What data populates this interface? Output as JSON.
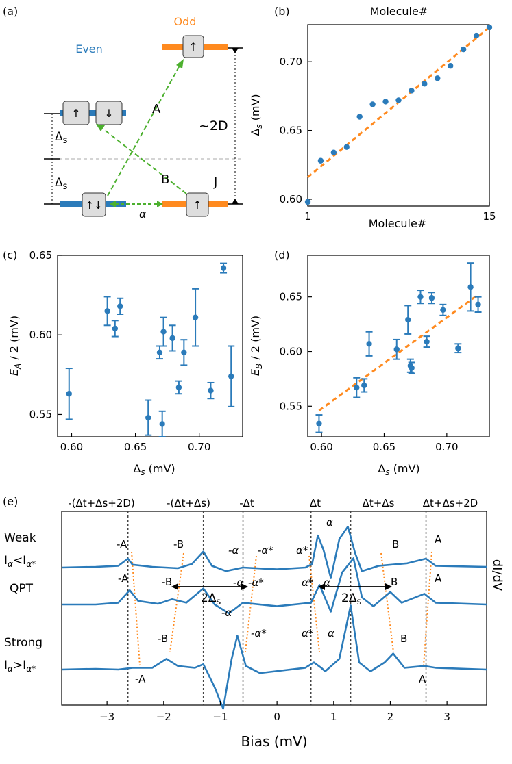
{
  "colors": {
    "blue": "#2b7bba",
    "orange": "#ff8a1f",
    "green": "#4cb02e",
    "box_fill": "#dedede",
    "dashed_gray": "#aaaaaa"
  },
  "panel_labels": {
    "a": "(a)",
    "b": "(b)",
    "c": "(c)",
    "d": "(d)",
    "e": "(e)"
  },
  "diagram": {
    "odd_label": "Odd",
    "even_label": "Even",
    "up_arrow": "↑",
    "down_arrow": "↓",
    "updown_arrow": "↑↓",
    "label_A": "A",
    "label_B": "B",
    "label_J": "J",
    "label_2D": "~2D",
    "delta_s": "Δ",
    "delta_s_sub": "s",
    "alpha": "α"
  },
  "chart_data": [
    {
      "id": "b",
      "type": "scatter",
      "title": "Molecule#",
      "xlabel": "Molecule#",
      "ylabel": "Δs (mV)",
      "xlim": [
        1,
        15
      ],
      "ylim": [
        0.595,
        0.727
      ],
      "xticks": [
        "1",
        "15"
      ],
      "yticks": [
        "0.60",
        "0.65",
        "0.70"
      ],
      "x": [
        1,
        2,
        3,
        4,
        5,
        6,
        7,
        8,
        9,
        10,
        11,
        12,
        13,
        14,
        15
      ],
      "y": [
        0.598,
        0.628,
        0.634,
        0.638,
        0.66,
        0.669,
        0.671,
        0.672,
        0.679,
        0.684,
        0.688,
        0.697,
        0.709,
        0.719,
        0.725
      ],
      "fit_line": {
        "x": [
          1,
          15
        ],
        "y": [
          0.616,
          0.725
        ]
      }
    },
    {
      "id": "c",
      "type": "scatter",
      "xlabel": "Δs (mV)",
      "ylabel": "EA / 2 (mV)",
      "xlim": [
        0.589,
        0.734
      ],
      "ylim": [
        0.536,
        0.65
      ],
      "xticks": [
        "0.60",
        "0.65",
        "0.70"
      ],
      "yticks": [
        "0.55",
        "0.60",
        "0.65"
      ],
      "x": [
        0.598,
        0.628,
        0.634,
        0.638,
        0.66,
        0.669,
        0.671,
        0.672,
        0.679,
        0.684,
        0.688,
        0.697,
        0.709,
        0.719,
        0.725
      ],
      "y": [
        0.563,
        0.615,
        0.604,
        0.618,
        0.548,
        0.589,
        0.544,
        0.602,
        0.598,
        0.567,
        0.589,
        0.611,
        0.565,
        0.642,
        0.574
      ],
      "err": [
        0.016,
        0.009,
        0.005,
        0.005,
        0.011,
        0.004,
        0.008,
        0.009,
        0.008,
        0.004,
        0.008,
        0.018,
        0.005,
        0.003,
        0.019
      ]
    },
    {
      "id": "d",
      "type": "scatter",
      "xlabel": "Δs (mV)",
      "ylabel": "EB / 2 (mV)",
      "xlim": [
        0.589,
        0.734
      ],
      "ylim": [
        0.522,
        0.688
      ],
      "xticks": [
        "0.60",
        "0.65",
        "0.70"
      ],
      "yticks": [
        "0.55",
        "0.60",
        "0.65"
      ],
      "x": [
        0.598,
        0.628,
        0.634,
        0.638,
        0.66,
        0.669,
        0.671,
        0.672,
        0.679,
        0.684,
        0.688,
        0.697,
        0.709,
        0.719,
        0.725
      ],
      "y": [
        0.534,
        0.567,
        0.569,
        0.607,
        0.602,
        0.629,
        0.587,
        0.585,
        0.65,
        0.609,
        0.649,
        0.638,
        0.603,
        0.659,
        0.643
      ],
      "err": [
        0.008,
        0.009,
        0.006,
        0.011,
        0.009,
        0.013,
        0.006,
        0.005,
        0.006,
        0.005,
        0.005,
        0.005,
        0.004,
        0.022,
        0.007
      ],
      "fit_line": {
        "x": [
          0.598,
          0.725
        ],
        "y": [
          0.546,
          0.652
        ]
      }
    },
    {
      "id": "e",
      "type": "line",
      "xlabel": "Bias (mV)",
      "ylabel": "dI/dV",
      "xlim": [
        -3.8,
        3.7
      ],
      "xticks": [
        "−3",
        "−2",
        "−1",
        "0",
        "1",
        "2",
        "3"
      ],
      "top_labels": [
        "-(Δt+Δs+2D)",
        "-(Δt+Δs)",
        "-Δt",
        "Δt",
        "Δt+Δs",
        "Δt+Δs+2D"
      ],
      "vlines": [
        -2.63,
        -1.3,
        -0.6,
        0.6,
        1.3,
        2.63
      ],
      "row_labels": [
        "Weak",
        "Iα<Iα*",
        "QPT",
        "Strong",
        "Iα>Iα*"
      ],
      "series": [
        {
          "name": "Weak",
          "points": [
            [
              -3.8,
              0
            ],
            [
              -3.2,
              0.02
            ],
            [
              -2.8,
              0.05
            ],
            [
              -2.63,
              0.25
            ],
            [
              -2.55,
              0.08
            ],
            [
              -2.2,
              0.02
            ],
            [
              -1.75,
              -0.02
            ],
            [
              -1.5,
              0.1
            ],
            [
              -1.3,
              0.45
            ],
            [
              -1.15,
              0.05
            ],
            [
              -0.9,
              -0.1
            ],
            [
              -0.6,
              0
            ],
            [
              0,
              -0.05
            ],
            [
              0.5,
              0
            ],
            [
              0.62,
              0.1
            ],
            [
              0.72,
              0.9
            ],
            [
              0.82,
              0.5
            ],
            [
              0.95,
              -0.3
            ],
            [
              1.1,
              0.8
            ],
            [
              1.25,
              1.15
            ],
            [
              1.38,
              0.4
            ],
            [
              1.5,
              -0.1
            ],
            [
              1.8,
              0.05
            ],
            [
              2.3,
              0.12
            ],
            [
              2.63,
              0.25
            ],
            [
              2.8,
              0.05
            ],
            [
              3.7,
              0.02
            ]
          ]
        },
        {
          "name": "QPT",
          "points": [
            [
              -3.8,
              0
            ],
            [
              -3.2,
              0
            ],
            [
              -2.8,
              0.05
            ],
            [
              -2.6,
              0.4
            ],
            [
              -2.45,
              0.1
            ],
            [
              -2.1,
              0.02
            ],
            [
              -1.85,
              0.15
            ],
            [
              -1.6,
              0.05
            ],
            [
              -1.3,
              0.45
            ],
            [
              -1.1,
              0
            ],
            [
              -0.85,
              -0.25
            ],
            [
              -0.6,
              0.05
            ],
            [
              0,
              -0.05
            ],
            [
              0.6,
              0.05
            ],
            [
              0.75,
              0.55
            ],
            [
              0.95,
              -0.2
            ],
            [
              1.15,
              0.9
            ],
            [
              1.35,
              1.3
            ],
            [
              1.5,
              0.2
            ],
            [
              1.7,
              -0.05
            ],
            [
              2,
              0.35
            ],
            [
              2.2,
              0.05
            ],
            [
              2.6,
              0.3
            ],
            [
              2.8,
              0.05
            ],
            [
              3.7,
              0
            ]
          ]
        },
        {
          "name": "Strong",
          "points": [
            [
              -3.8,
              0
            ],
            [
              -3.2,
              0.02
            ],
            [
              -2.8,
              0
            ],
            [
              -2.55,
              0.05
            ],
            [
              -2.2,
              0.05
            ],
            [
              -1.95,
              0.3
            ],
            [
              -1.75,
              0.1
            ],
            [
              -1.45,
              0.05
            ],
            [
              -1.3,
              0.15
            ],
            [
              -1.1,
              -0.5
            ],
            [
              -0.95,
              -1.1
            ],
            [
              -0.8,
              0.3
            ],
            [
              -0.7,
              0.95
            ],
            [
              -0.55,
              0.1
            ],
            [
              -0.3,
              -0.1
            ],
            [
              0.5,
              0.05
            ],
            [
              0.65,
              0.2
            ],
            [
              0.78,
              0.05
            ],
            [
              0.85,
              -0.05
            ],
            [
              1.1,
              0.3
            ],
            [
              1.3,
              1.8
            ],
            [
              1.45,
              0.2
            ],
            [
              1.65,
              -0.05
            ],
            [
              1.9,
              0.2
            ],
            [
              2.05,
              0.45
            ],
            [
              2.25,
              0.05
            ],
            [
              2.6,
              0.1
            ],
            [
              2.8,
              0.05
            ],
            [
              3.7,
              0
            ]
          ]
        }
      ]
    }
  ],
  "panel_e_annotations": {
    "minus_A": "-A",
    "minus_B": "-B",
    "A": "A",
    "B": "B",
    "minus_alpha": "-α",
    "minus_alpha_star": "-α*",
    "alpha": "α",
    "alpha_star": "α*",
    "two_delta_s": "2Δ",
    "two_delta_s_sub": "s"
  }
}
